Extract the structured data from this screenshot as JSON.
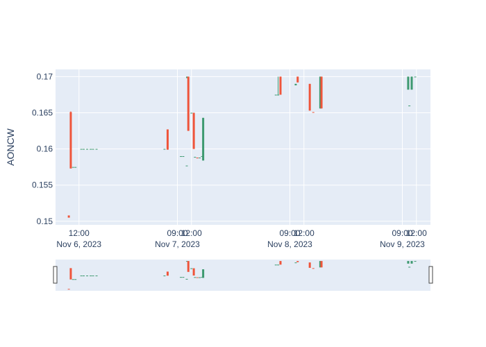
{
  "chart_data": {
    "type": "candlestick",
    "ylabel": "AONCW",
    "ylim": [
      0.1495,
      0.171
    ],
    "xlim": [
      "2023-11-06 07:00",
      "2023-11-09 15:00"
    ],
    "grid": true,
    "legend": "none",
    "rangeslider": true,
    "colors": {
      "increasing": "#3d9970",
      "decreasing": "#ef553b",
      "plot_bg": "#e5ecf6",
      "grid": "#ffffff",
      "text": "#2a3f5f"
    },
    "y_ticks": [
      "0.15",
      "0.155",
      "0.16",
      "0.165",
      "0.17"
    ],
    "x_ticks": [
      {
        "value": "2023-11-06 12:00",
        "label": "12:00",
        "date": "Nov 6, 2023"
      },
      {
        "value": "2023-11-07 09:00",
        "label": "09:00",
        "date": "Nov 7, 2023"
      },
      {
        "value": "2023-11-07 12:00",
        "label": "12:00",
        "date": ""
      },
      {
        "value": "2023-11-08 09:00",
        "label": "09:00",
        "date": "Nov 8, 2023"
      },
      {
        "value": "2023-11-08 12:00",
        "label": "12:00",
        "date": ""
      },
      {
        "value": "2023-11-09 09:00",
        "label": "09:00",
        "date": "Nov 9, 2023"
      },
      {
        "value": "2023-11-09 12:00",
        "label": "12:00",
        "date": ""
      }
    ],
    "candles": [
      {
        "t": "2023-11-06 09:50",
        "open": 0.1508,
        "high": 0.1508,
        "low": 0.1505,
        "close": 0.1505
      },
      {
        "t": "2023-11-06 10:15",
        "open": 0.1651,
        "high": 0.1652,
        "low": 0.1573,
        "close": 0.1573
      },
      {
        "t": "2023-11-06 10:45",
        "open": 0.1575,
        "high": 0.1575,
        "low": 0.1575,
        "close": 0.1575
      },
      {
        "t": "2023-11-06 11:15",
        "open": 0.1575,
        "high": 0.1575,
        "low": 0.1575,
        "close": 0.1575
      },
      {
        "t": "2023-11-06 12:30",
        "open": 0.16,
        "high": 0.16,
        "low": 0.16,
        "close": 0.16
      },
      {
        "t": "2023-11-06 13:00",
        "open": 0.16,
        "high": 0.16,
        "low": 0.16,
        "close": 0.16
      },
      {
        "t": "2023-11-06 13:45",
        "open": 0.16,
        "high": 0.16,
        "low": 0.16,
        "close": 0.16
      },
      {
        "t": "2023-11-06 14:30",
        "open": 0.16,
        "high": 0.16,
        "low": 0.16,
        "close": 0.16
      },
      {
        "t": "2023-11-06 15:00",
        "open": 0.16,
        "high": 0.16,
        "low": 0.16,
        "close": 0.16
      },
      {
        "t": "2023-11-06 15:45",
        "open": 0.16,
        "high": 0.16,
        "low": 0.16,
        "close": 0.16
      },
      {
        "t": "2023-11-07 06:15",
        "open": 0.16,
        "high": 0.16,
        "low": 0.16,
        "close": 0.16
      },
      {
        "t": "2023-11-07 06:55",
        "open": 0.1627,
        "high": 0.1627,
        "low": 0.1599,
        "close": 0.1599
      },
      {
        "t": "2023-11-07 09:45",
        "open": 0.159,
        "high": 0.159,
        "low": 0.159,
        "close": 0.159
      },
      {
        "t": "2023-11-07 10:15",
        "open": 0.159,
        "high": 0.159,
        "low": 0.159,
        "close": 0.159
      },
      {
        "t": "2023-11-07 11:00",
        "open": 0.1577,
        "high": 0.1577,
        "low": 0.1577,
        "close": 0.1577
      },
      {
        "t": "2023-11-07 11:05",
        "open": 0.1698,
        "high": 0.17,
        "low": 0.1698,
        "close": 0.17
      },
      {
        "t": "2023-11-07 11:20",
        "open": 0.17,
        "high": 0.17,
        "low": 0.1625,
        "close": 0.1625
      },
      {
        "t": "2023-11-07 12:00",
        "open": 0.165,
        "high": 0.165,
        "low": 0.165,
        "close": 0.165
      },
      {
        "t": "2023-11-07 12:30",
        "open": 0.165,
        "high": 0.165,
        "low": 0.16,
        "close": 0.16
      },
      {
        "t": "2023-11-07 12:45",
        "open": 0.1589,
        "high": 0.1589,
        "low": 0.1589,
        "close": 0.1589
      },
      {
        "t": "2023-11-07 13:15",
        "open": 0.1588,
        "high": 0.1588,
        "low": 0.1587,
        "close": 0.1587
      },
      {
        "t": "2023-11-07 13:45",
        "open": 0.1588,
        "high": 0.1588,
        "low": 0.1588,
        "close": 0.1588
      },
      {
        "t": "2023-11-07 14:15",
        "open": 0.159,
        "high": 0.159,
        "low": 0.159,
        "close": 0.159
      },
      {
        "t": "2023-11-07 14:30",
        "open": 0.1584,
        "high": 0.1643,
        "low": 0.1584,
        "close": 0.1643
      },
      {
        "t": "2023-11-08 06:00",
        "open": 0.1675,
        "high": 0.1675,
        "low": 0.1675,
        "close": 0.1675
      },
      {
        "t": "2023-11-08 06:30",
        "open": 0.1675,
        "high": 0.17,
        "low": 0.1675,
        "close": 0.1675
      },
      {
        "t": "2023-11-08 07:00",
        "open": 0.17,
        "high": 0.17,
        "low": 0.1675,
        "close": 0.1675
      },
      {
        "t": "2023-11-08 10:15",
        "open": 0.1688,
        "high": 0.169,
        "low": 0.1688,
        "close": 0.169
      },
      {
        "t": "2023-11-08 10:40",
        "open": 0.17,
        "high": 0.17,
        "low": 0.1692,
        "close": 0.1692
      },
      {
        "t": "2023-11-08 13:15",
        "open": 0.169,
        "high": 0.169,
        "low": 0.1653,
        "close": 0.1653
      },
      {
        "t": "2023-11-08 14:00",
        "open": 0.1651,
        "high": 0.1651,
        "low": 0.165,
        "close": 0.165
      },
      {
        "t": "2023-11-08 15:30",
        "open": 0.1656,
        "high": 0.17,
        "low": 0.1656,
        "close": 0.17
      },
      {
        "t": "2023-11-08 15:45",
        "open": 0.17,
        "high": 0.17,
        "low": 0.1656,
        "close": 0.1656
      },
      {
        "t": "2023-11-09 10:15",
        "open": 0.1682,
        "high": 0.17,
        "low": 0.1682,
        "close": 0.17
      },
      {
        "t": "2023-11-09 10:30",
        "open": 0.166,
        "high": 0.166,
        "low": 0.166,
        "close": 0.166
      },
      {
        "t": "2023-11-09 11:00",
        "open": 0.1682,
        "high": 0.17,
        "low": 0.1682,
        "close": 0.17
      },
      {
        "t": "2023-11-09 11:45",
        "open": 0.17,
        "high": 0.17,
        "low": 0.17,
        "close": 0.17
      }
    ]
  }
}
